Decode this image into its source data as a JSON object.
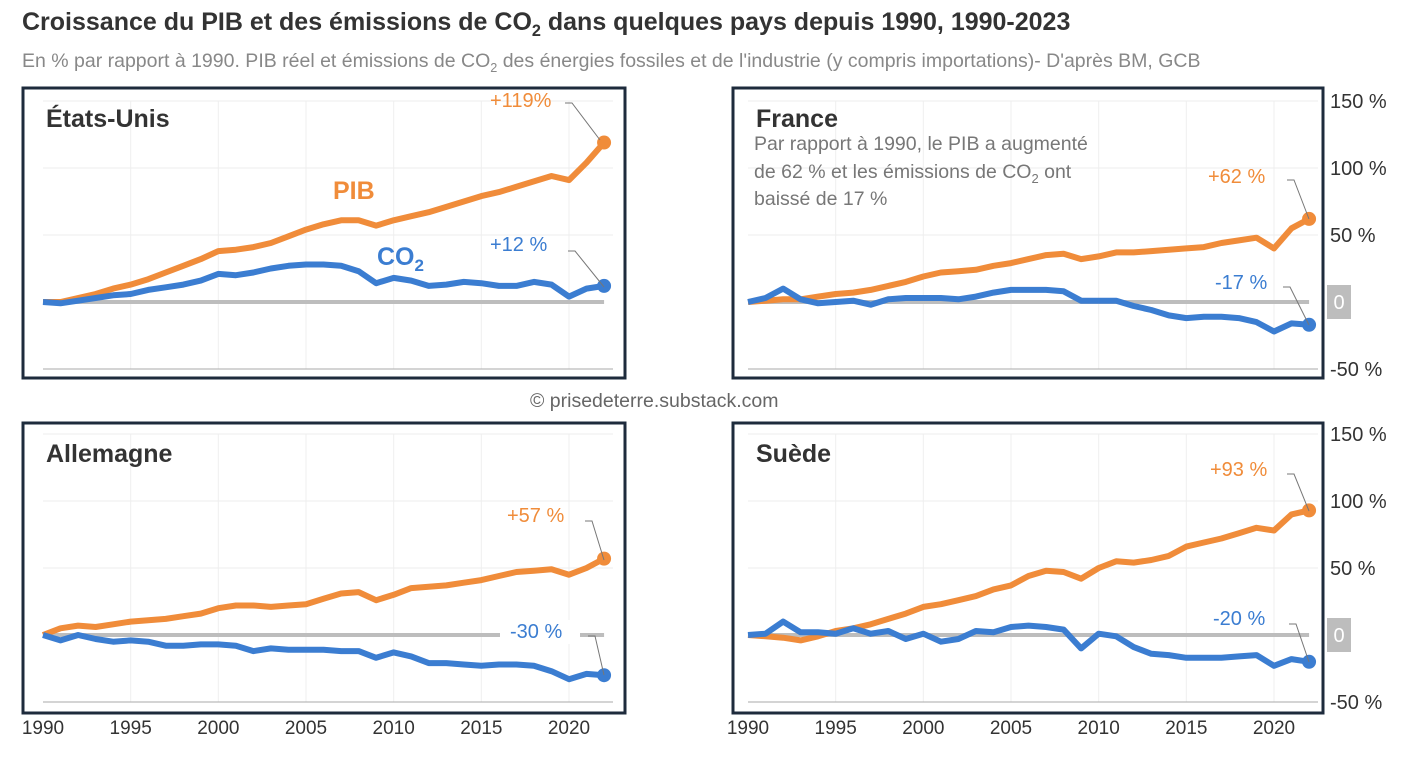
{
  "title_main": "Croissance du PIB et des émissions de CO",
  "title_sub": "2",
  "title_tail": " dans quelques pays depuis 1990, 1990-2023",
  "subtitle_main": "En % par rapport à 1990. PIB réel et émissions de CO",
  "subtitle_sub": "2",
  "subtitle_tail": " des énergies fossiles et de l'industrie (y compris importations)- D'après BM, GCB",
  "credit": "© prisedeterre.substack.com",
  "colors": {
    "gdp": "#F08C3A",
    "co2": "#3B7DD1",
    "frame": "#1E2B3C",
    "zero": "#BDBDBD"
  },
  "chart_data": {
    "type": "line",
    "x_start": 1990,
    "x_end": 2022,
    "x_ticks": [
      "1990",
      "1995",
      "2000",
      "2005",
      "2010",
      "2015",
      "2020"
    ],
    "y_ticks": [
      "150 %",
      "100 %",
      "50 %",
      "0",
      "-50 %"
    ],
    "ylim": [
      -50,
      150
    ],
    "series_labels": {
      "gdp": "PIB",
      "co2": "CO2"
    },
    "panels": [
      {
        "name": "États-Unis",
        "gdp": [
          0,
          0,
          3,
          6,
          10,
          13,
          17,
          22,
          27,
          32,
          38,
          39,
          41,
          44,
          49,
          54,
          58,
          61,
          61,
          57,
          61,
          64,
          67,
          71,
          75,
          79,
          82,
          86,
          90,
          94,
          91,
          104,
          119
        ],
        "co2": [
          0,
          -1,
          1,
          3,
          5,
          6,
          9,
          11,
          13,
          16,
          21,
          20,
          22,
          25,
          27,
          28,
          28,
          27,
          23,
          14,
          18,
          16,
          12,
          13,
          15,
          14,
          12,
          12,
          15,
          13,
          4,
          10,
          12
        ],
        "gdp_label": "+119%",
        "co2_label": "+12 %"
      },
      {
        "name": "France",
        "note": [
          "Par rapport à 1990, le PIB a augmenté",
          "de 62 % et les émissions de CO",
          "2",
          " ont",
          "baissé de 17 %"
        ],
        "gdp": [
          0,
          1,
          2,
          2,
          4,
          6,
          7,
          9,
          12,
          15,
          19,
          22,
          23,
          24,
          27,
          29,
          32,
          35,
          36,
          32,
          34,
          37,
          37,
          38,
          39,
          40,
          41,
          44,
          46,
          48,
          40,
          55,
          62
        ],
        "co2": [
          0,
          3,
          10,
          2,
          -1,
          0,
          1,
          -2,
          2,
          3,
          3,
          3,
          2,
          4,
          7,
          9,
          9,
          9,
          8,
          1,
          1,
          1,
          -3,
          -6,
          -10,
          -12,
          -11,
          -11,
          -12,
          -15,
          -22,
          -16,
          -17
        ],
        "gdp_label": "+62 %",
        "co2_label": "-17 %"
      },
      {
        "name": "Allemagne",
        "gdp": [
          0,
          5,
          7,
          6,
          8,
          10,
          11,
          12,
          14,
          16,
          20,
          22,
          22,
          21,
          22,
          23,
          27,
          31,
          32,
          26,
          30,
          35,
          36,
          37,
          39,
          41,
          44,
          47,
          48,
          49,
          45,
          50,
          57
        ],
        "co2": [
          0,
          -4,
          0,
          -3,
          -5,
          -4,
          -5,
          -8,
          -8,
          -7,
          -7,
          -8,
          -12,
          -10,
          -11,
          -11,
          -11,
          -12,
          -12,
          -17,
          -13,
          -16,
          -21,
          -21,
          -22,
          -23,
          -22,
          -22,
          -23,
          -27,
          -33,
          -29,
          -30
        ],
        "gdp_label": "+57 %",
        "co2_label": "-30 %"
      },
      {
        "name": "Suède",
        "gdp": [
          0,
          -1,
          -2,
          -4,
          -1,
          3,
          5,
          8,
          12,
          16,
          21,
          23,
          26,
          29,
          34,
          37,
          44,
          48,
          47,
          42,
          50,
          55,
          54,
          56,
          59,
          66,
          69,
          72,
          76,
          80,
          78,
          90,
          93
        ],
        "co2": [
          0,
          1,
          10,
          2,
          2,
          1,
          5,
          1,
          3,
          -3,
          1,
          -5,
          -3,
          3,
          2,
          6,
          7,
          6,
          4,
          -10,
          1,
          -1,
          -9,
          -14,
          -15,
          -17,
          -17,
          -17,
          -16,
          -15,
          -23,
          -18,
          -20
        ],
        "gdp_label": "+93 %",
        "co2_label": "-20 %"
      }
    ]
  }
}
